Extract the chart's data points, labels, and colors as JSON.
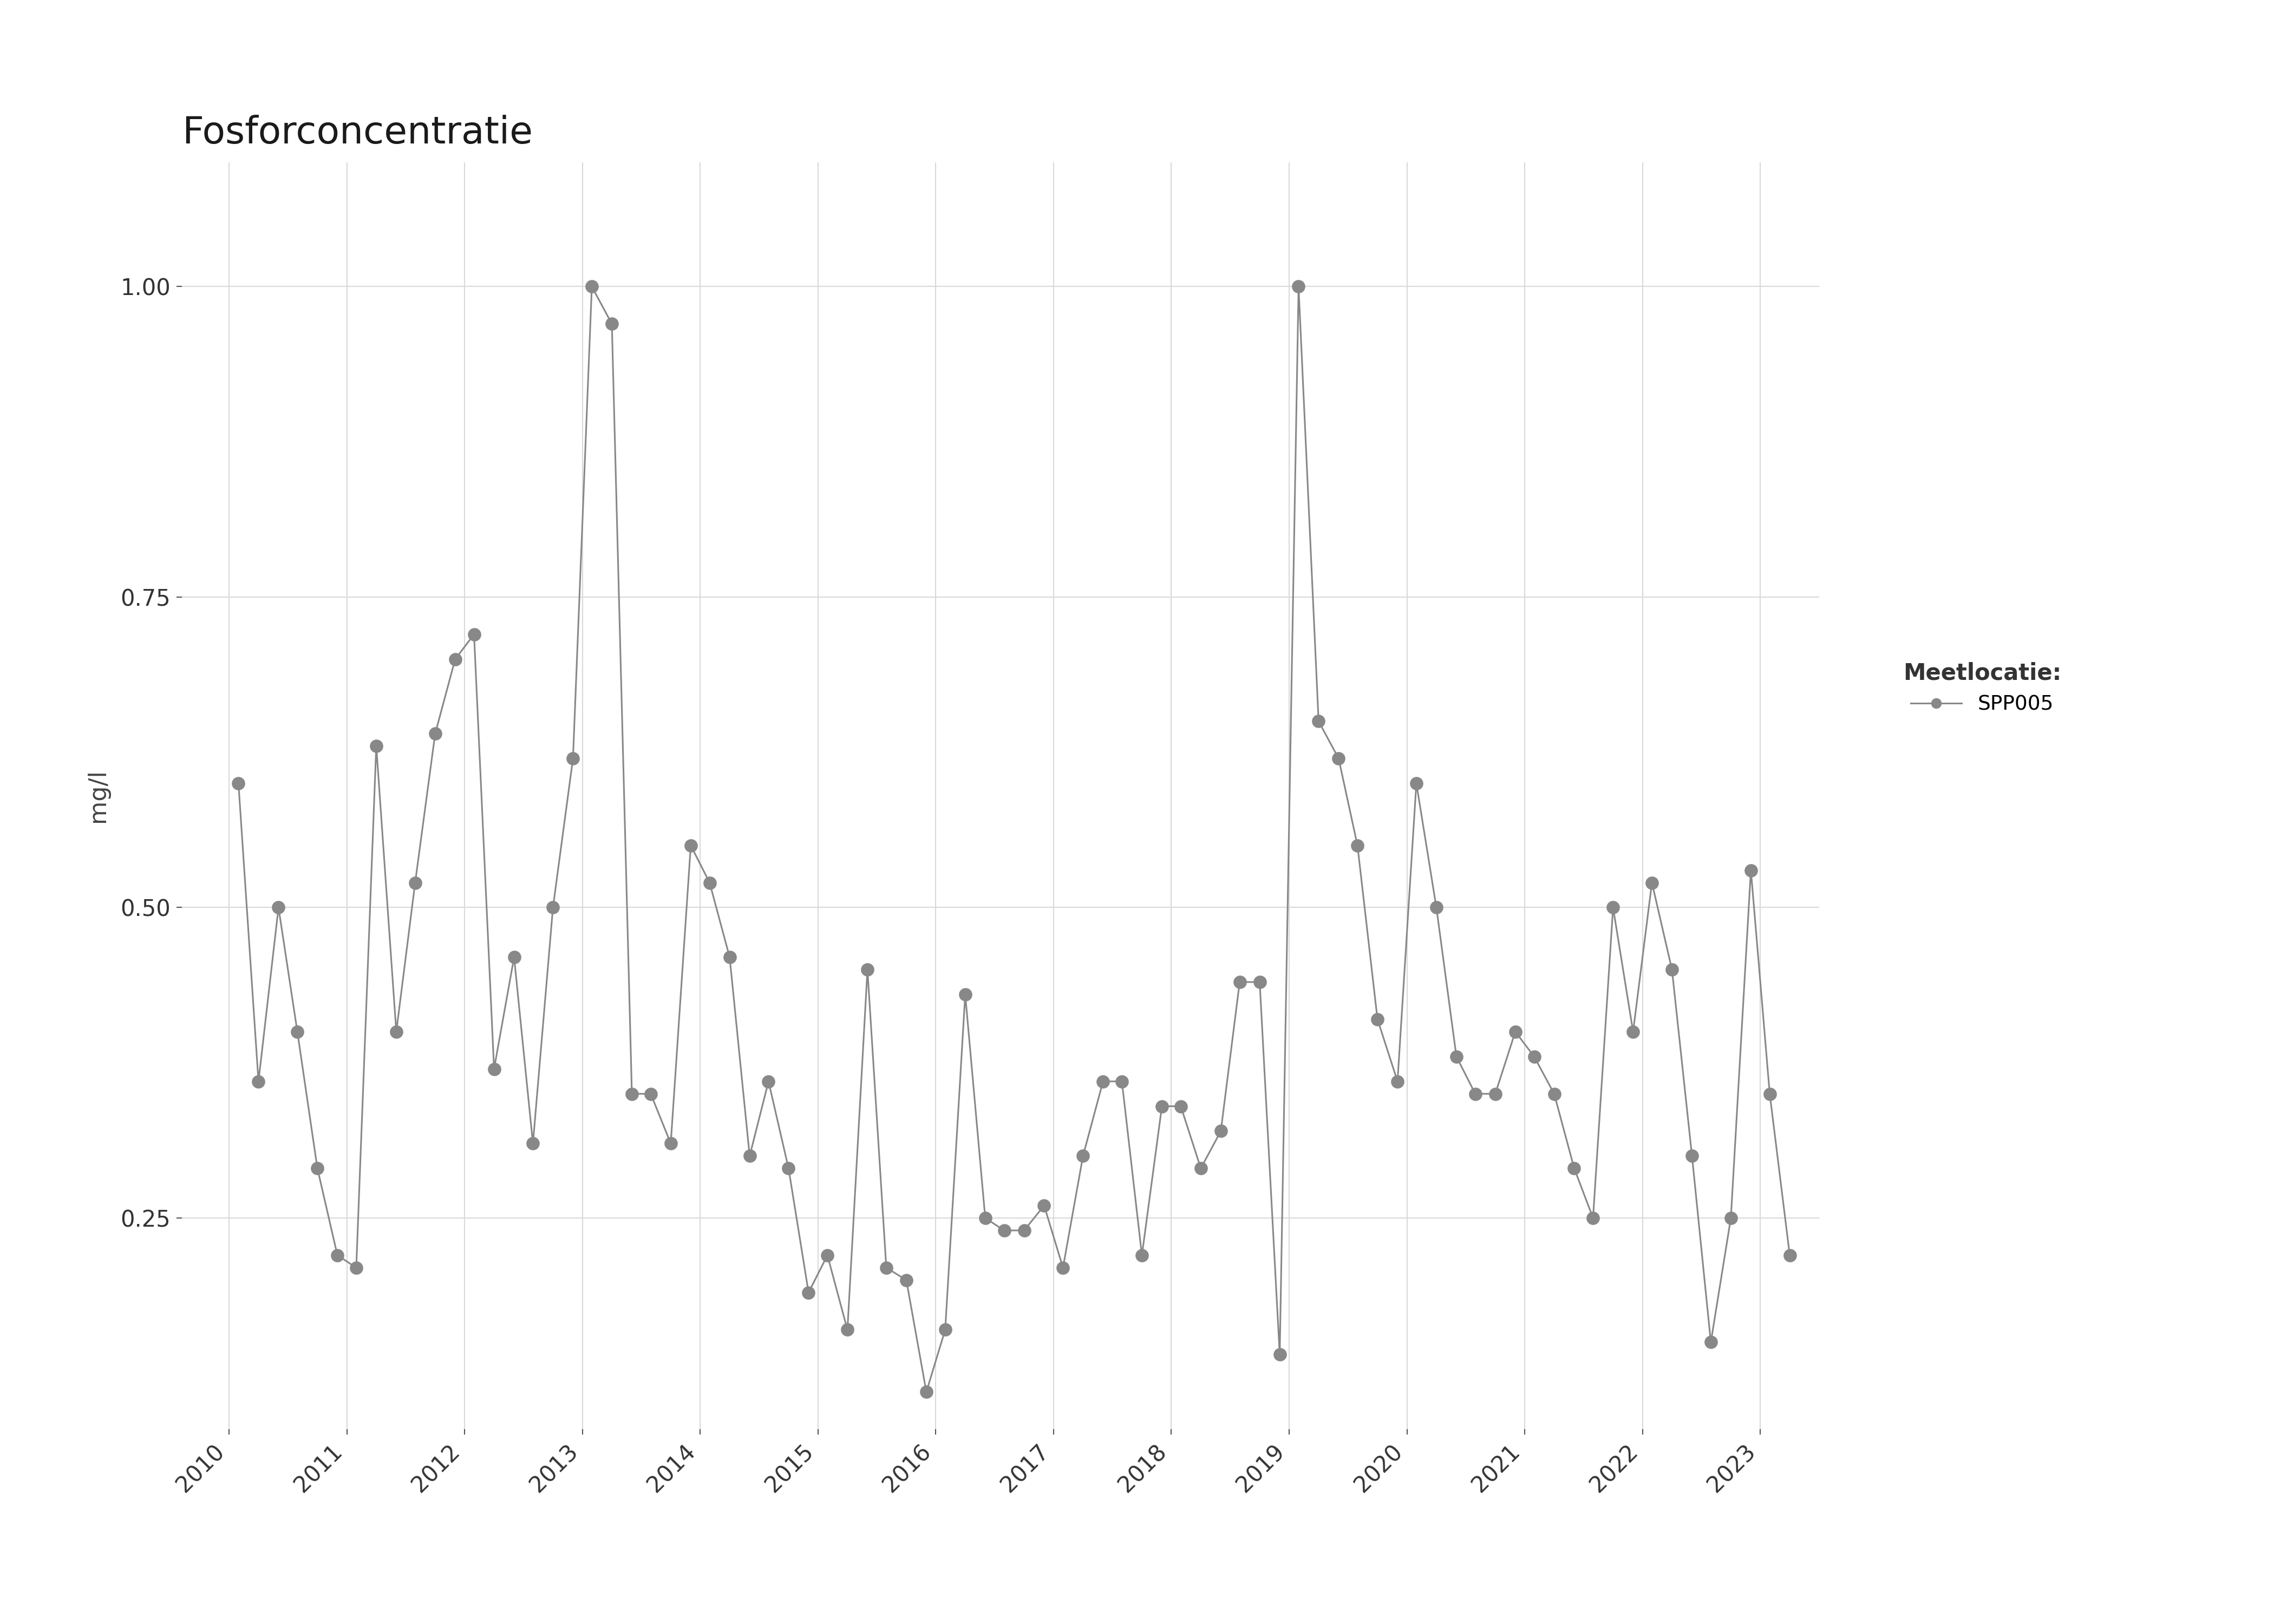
{
  "title": "Fosforconcentratie",
  "ylabel": "mg/l",
  "legend_title": "Meetlocatie:",
  "legend_label": "SPP005",
  "line_color": "#888888",
  "marker_color": "#888888",
  "background_color": "#ffffff",
  "grid_color": "#d9d9d9",
  "ylim": [
    0.08,
    1.1
  ],
  "yticks": [
    0.25,
    0.5,
    0.75,
    1.0
  ],
  "xlim": [
    2009.6,
    2023.5
  ],
  "xticks": [
    2010,
    2011,
    2012,
    2013,
    2014,
    2015,
    2016,
    2017,
    2018,
    2019,
    2020,
    2021,
    2022,
    2023
  ],
  "data_x": [
    2010.08,
    2010.25,
    2010.42,
    2010.58,
    2010.75,
    2010.92,
    2011.08,
    2011.25,
    2011.42,
    2011.58,
    2011.75,
    2011.92,
    2012.08,
    2012.25,
    2012.42,
    2012.58,
    2012.75,
    2012.92,
    2013.08,
    2013.25,
    2013.42,
    2013.58,
    2013.75,
    2013.92,
    2014.08,
    2014.25,
    2014.42,
    2014.58,
    2014.75,
    2014.92,
    2015.08,
    2015.25,
    2015.42,
    2015.58,
    2015.75,
    2015.92,
    2016.08,
    2016.25,
    2016.42,
    2016.58,
    2016.75,
    2016.92,
    2017.08,
    2017.25,
    2017.42,
    2017.58,
    2017.75,
    2017.92,
    2018.08,
    2018.25,
    2018.42,
    2018.58,
    2018.75,
    2018.92,
    2019.08,
    2019.25,
    2019.42,
    2019.58,
    2019.75,
    2019.92,
    2020.08,
    2020.25,
    2020.42,
    2020.58,
    2020.75,
    2020.92,
    2021.08,
    2021.25,
    2021.42,
    2021.58,
    2021.75,
    2021.92,
    2022.08,
    2022.25,
    2022.42,
    2022.58,
    2022.75,
    2022.92,
    2023.08,
    2023.25
  ],
  "data_y": [
    0.6,
    0.36,
    0.5,
    0.4,
    0.29,
    0.22,
    0.21,
    0.63,
    0.4,
    0.52,
    0.64,
    0.7,
    0.72,
    0.37,
    0.46,
    0.31,
    0.5,
    0.62,
    1.0,
    0.97,
    0.35,
    0.35,
    0.31,
    0.55,
    0.52,
    0.46,
    0.3,
    0.36,
    0.29,
    0.19,
    0.22,
    0.16,
    0.45,
    0.21,
    0.2,
    0.11,
    0.16,
    0.43,
    0.25,
    0.24,
    0.24,
    0.26,
    0.21,
    0.3,
    0.36,
    0.36,
    0.22,
    0.34,
    0.34,
    0.29,
    0.32,
    0.44,
    0.44,
    0.14,
    1.0,
    0.65,
    0.62,
    0.55,
    0.41,
    0.36,
    0.6,
    0.5,
    0.38,
    0.35,
    0.35,
    0.4,
    0.38,
    0.35,
    0.29,
    0.25,
    0.5,
    0.4,
    0.52,
    0.45,
    0.3,
    0.15,
    0.25,
    0.53,
    0.35,
    0.22
  ]
}
